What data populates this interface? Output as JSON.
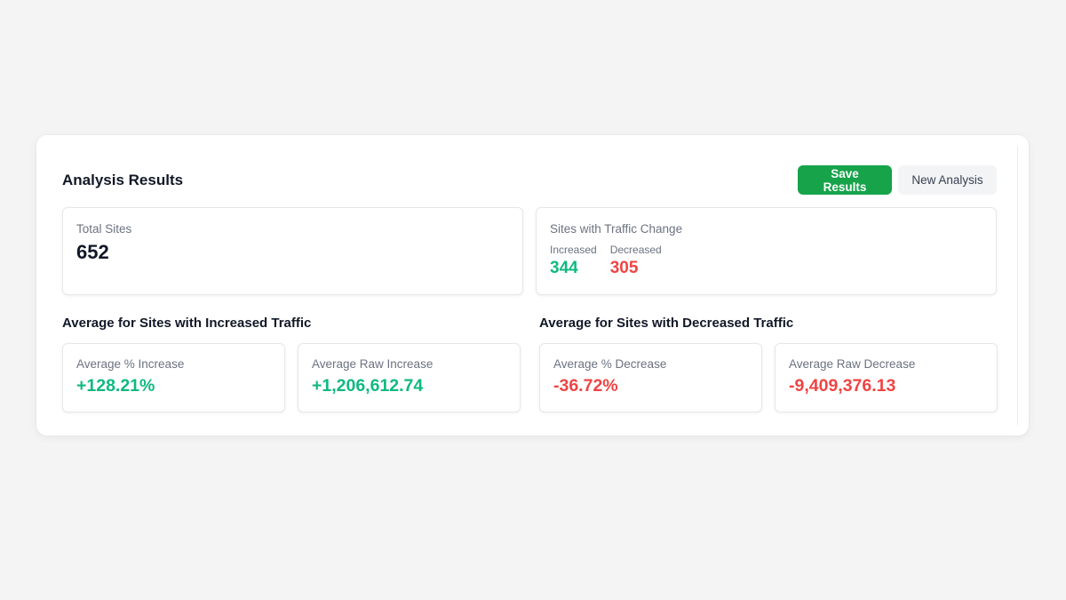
{
  "panel": {
    "title": "Analysis Results",
    "actions": {
      "save_label": "Save Results",
      "new_label": "New Analysis"
    }
  },
  "summary": {
    "total_sites": {
      "label": "Total Sites",
      "value": "652"
    },
    "traffic_change": {
      "label": "Sites with Traffic Change",
      "increased_label": "Increased",
      "increased_value": "344",
      "decreased_label": "Decreased",
      "decreased_value": "305"
    }
  },
  "increased_section": {
    "title": "Average for Sites with Increased Traffic",
    "avg_pct": {
      "label": "Average % Increase",
      "value": "+128.21%"
    },
    "avg_raw": {
      "label": "Average Raw Increase",
      "value": "+1,206,612.74"
    }
  },
  "decreased_section": {
    "title": "Average for Sites with Decreased Traffic",
    "avg_pct": {
      "label": "Average % Decrease",
      "value": "-36.72%"
    },
    "avg_raw": {
      "label": "Average Raw Decrease",
      "value": "-9,409,376.13"
    }
  },
  "colors": {
    "primary": "#16a34a",
    "positive": "#10b981",
    "negative": "#ef4444"
  }
}
